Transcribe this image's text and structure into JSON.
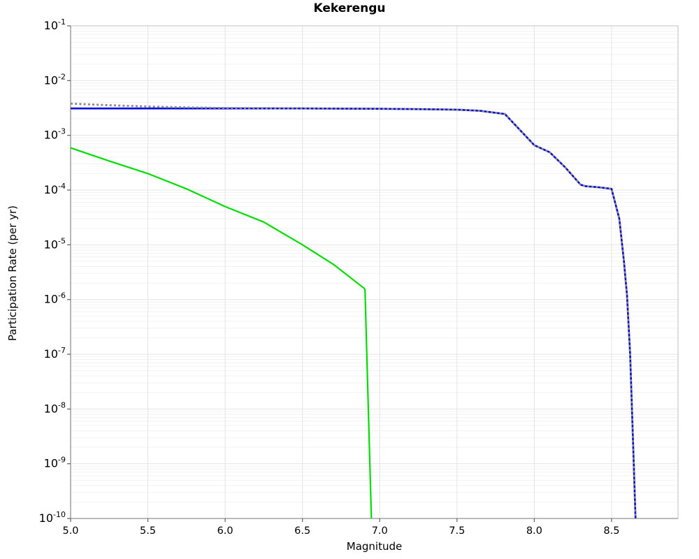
{
  "figure": {
    "background": "#ffffff"
  },
  "chart_data": {
    "type": "line",
    "title": "Kekerengu",
    "xlabel": "Magnitude",
    "ylabel": "Participation Rate (per yr)",
    "xlim": [
      5.0,
      8.93
    ],
    "ylim": [
      1e-10,
      0.1
    ],
    "ylim_exponents": [
      -10,
      -1
    ],
    "grid": "major and minor log gridlines, light gray, on",
    "legend": "none",
    "axis_colors": {
      "frame": "#c0c0c0",
      "axis": "#909090",
      "tick": "#606060",
      "grid_major": "#e4e4e4",
      "grid_minor": "#f2f2f2"
    },
    "x_ticks": [
      {
        "value": 5.0,
        "label": "5.0"
      },
      {
        "value": 5.5,
        "label": "5.5"
      },
      {
        "value": 6.0,
        "label": "6.0"
      },
      {
        "value": 6.5,
        "label": "6.5"
      },
      {
        "value": 7.0,
        "label": "7.0"
      },
      {
        "value": 7.5,
        "label": "7.5"
      },
      {
        "value": 8.0,
        "label": "8.0"
      },
      {
        "value": 8.5,
        "label": "8.5"
      }
    ],
    "y_ticks": [
      {
        "base": "10",
        "exp": "-1"
      },
      {
        "base": "10",
        "exp": "-2"
      },
      {
        "base": "10",
        "exp": "-3"
      },
      {
        "base": "10",
        "exp": "-4"
      },
      {
        "base": "10",
        "exp": "-5"
      },
      {
        "base": "10",
        "exp": "-6"
      },
      {
        "base": "10",
        "exp": "-7"
      },
      {
        "base": "10",
        "exp": "-8"
      },
      {
        "base": "10",
        "exp": "-9"
      },
      {
        "base": "10",
        "exp": "-10"
      }
    ],
    "series": [
      {
        "name": "green-solid",
        "color": "#00dd00",
        "style": "solid",
        "width": 2.2,
        "points": [
          [
            5.0,
            0.00059
          ],
          [
            5.25,
            0.00034
          ],
          [
            5.5,
            0.0002
          ],
          [
            5.75,
            0.000105
          ],
          [
            6.0,
            5e-05
          ],
          [
            6.25,
            2.6e-05
          ],
          [
            6.5,
            1e-05
          ],
          [
            6.7,
            4.4e-06
          ],
          [
            6.9,
            1.6e-06
          ],
          [
            6.905,
            1.5e-06
          ],
          [
            6.946,
            1e-10
          ]
        ]
      },
      {
        "name": "blue-solid",
        "color": "#0000e8",
        "style": "solid",
        "width": 2.6,
        "points": [
          [
            5.0,
            0.0031
          ],
          [
            5.5,
            0.0031
          ],
          [
            6.0,
            0.0031
          ],
          [
            6.5,
            0.0031
          ],
          [
            7.0,
            0.00305
          ],
          [
            7.3,
            0.003
          ],
          [
            7.5,
            0.00295
          ],
          [
            7.65,
            0.0028
          ],
          [
            7.81,
            0.00245
          ],
          [
            8.0,
            0.00066
          ],
          [
            8.1,
            0.00049
          ],
          [
            8.2,
            0.00026
          ],
          [
            8.3,
            0.000125
          ],
          [
            8.33,
            0.000118
          ],
          [
            8.42,
            0.000112
          ],
          [
            8.5,
            0.000105
          ],
          [
            8.55,
            3e-05
          ],
          [
            8.58,
            5e-06
          ],
          [
            8.6,
            1.2e-06
          ],
          [
            8.62,
            1e-07
          ],
          [
            8.64,
            2e-09
          ],
          [
            8.655,
            1e-10
          ]
        ]
      },
      {
        "name": "gray-dotted",
        "color": "#8a8a8a",
        "style": "dotted",
        "width": 2.8,
        "points": [
          [
            5.0,
            0.0038
          ],
          [
            5.3,
            0.0035
          ],
          [
            5.6,
            0.0033
          ],
          [
            6.0,
            0.00315
          ],
          [
            6.4,
            0.0031
          ],
          [
            6.5,
            0.0031
          ],
          [
            7.0,
            0.00305
          ],
          [
            7.3,
            0.003
          ],
          [
            7.5,
            0.00295
          ],
          [
            7.65,
            0.0028
          ],
          [
            7.81,
            0.00245
          ],
          [
            8.0,
            0.00066
          ],
          [
            8.1,
            0.00049
          ],
          [
            8.2,
            0.00026
          ],
          [
            8.3,
            0.000125
          ],
          [
            8.33,
            0.000118
          ],
          [
            8.42,
            0.000112
          ],
          [
            8.5,
            0.000105
          ],
          [
            8.55,
            3e-05
          ],
          [
            8.58,
            5e-06
          ],
          [
            8.6,
            1.2e-06
          ],
          [
            8.62,
            1e-07
          ],
          [
            8.64,
            2e-09
          ],
          [
            8.655,
            1e-10
          ]
        ]
      }
    ]
  }
}
